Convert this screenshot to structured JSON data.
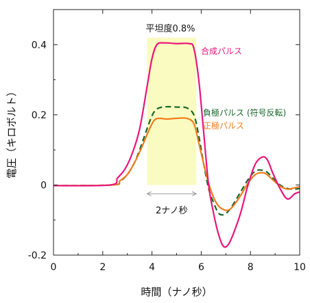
{
  "chart_data": {
    "type": "line",
    "xlabel": "時間（ナノ秒）",
    "ylabel": "電圧（キロボルト）",
    "xlim": [
      0,
      10
    ],
    "ylim": [
      -0.2,
      0.5
    ],
    "xticks": [
      0,
      2,
      4,
      6,
      8,
      10
    ],
    "yticks": [
      -0.2,
      0,
      0.2,
      0.4
    ],
    "ytick_labels": [
      "-0.2",
      "0",
      "0.2",
      "0.4"
    ],
    "grid": false,
    "legend": "inline labels next to curves",
    "annotations": {
      "flatness": "平坦度0.8%",
      "duration": "2ナノ秒",
      "highlight_x": [
        3.8,
        5.8
      ],
      "arrow_x": [
        3.8,
        5.8
      ],
      "arrow_y": -0.025,
      "highlight_color": "#fafbc0"
    },
    "series": [
      {
        "name": "合成パルス",
        "color": "#e8157b",
        "dash": "solid",
        "x": [
          0,
          2.3,
          2.6,
          2.9,
          3.2,
          3.5,
          3.8,
          4.0,
          4.2,
          4.5,
          5.0,
          5.5,
          5.7,
          5.9,
          6.1,
          6.3,
          6.5,
          6.7,
          6.9,
          7.1,
          7.3,
          7.6,
          7.9,
          8.2,
          8.5,
          8.7,
          8.9,
          9.2,
          9.5,
          9.8,
          10.0
        ],
        "y": [
          -0.002,
          0.0,
          0.02,
          0.045,
          0.09,
          0.16,
          0.28,
          0.36,
          0.4,
          0.405,
          0.403,
          0.403,
          0.39,
          0.3,
          0.15,
          0.0,
          -0.08,
          -0.14,
          -0.175,
          -0.17,
          -0.14,
          -0.08,
          0.0,
          0.06,
          0.08,
          0.07,
          0.035,
          -0.01,
          -0.04,
          -0.025,
          -0.02
        ]
      },
      {
        "name": "負極パルス (符号反転)",
        "color": "#17652a",
        "dash": "dashed",
        "x": [
          0,
          2.4,
          2.7,
          3.0,
          3.3,
          3.6,
          3.9,
          4.1,
          4.3,
          4.6,
          5.0,
          5.4,
          5.7,
          5.9,
          6.1,
          6.3,
          6.5,
          6.7,
          6.9,
          7.1,
          7.3,
          7.6,
          7.9,
          8.2,
          8.5,
          8.7,
          8.9,
          9.2,
          9.5,
          9.8,
          10.0
        ],
        "y": [
          -0.002,
          0.0,
          0.01,
          0.03,
          0.065,
          0.12,
          0.18,
          0.21,
          0.22,
          0.223,
          0.222,
          0.22,
          0.2,
          0.14,
          0.06,
          -0.01,
          -0.05,
          -0.08,
          -0.085,
          -0.075,
          -0.055,
          -0.02,
          0.015,
          0.04,
          0.042,
          0.035,
          0.02,
          0.0,
          -0.01,
          -0.012,
          -0.01
        ]
      },
      {
        "name": "正極パルス",
        "color": "#f07a19",
        "dash": "solid",
        "x": [
          0,
          2.4,
          2.7,
          3.0,
          3.3,
          3.6,
          3.9,
          4.1,
          4.3,
          4.6,
          5.0,
          5.4,
          5.7,
          5.9,
          6.1,
          6.3,
          6.5,
          6.7,
          6.9,
          7.1,
          7.3,
          7.6,
          7.9,
          8.2,
          8.5,
          8.7,
          8.9,
          9.2,
          9.5,
          9.8,
          10.0
        ],
        "y": [
          -0.002,
          0.0,
          0.012,
          0.03,
          0.065,
          0.11,
          0.16,
          0.185,
          0.19,
          0.188,
          0.19,
          0.19,
          0.175,
          0.12,
          0.06,
          0.005,
          -0.035,
          -0.06,
          -0.07,
          -0.072,
          -0.06,
          -0.03,
          0.005,
          0.03,
          0.035,
          0.028,
          0.015,
          -0.003,
          -0.012,
          -0.008,
          -0.005
        ]
      }
    ]
  }
}
